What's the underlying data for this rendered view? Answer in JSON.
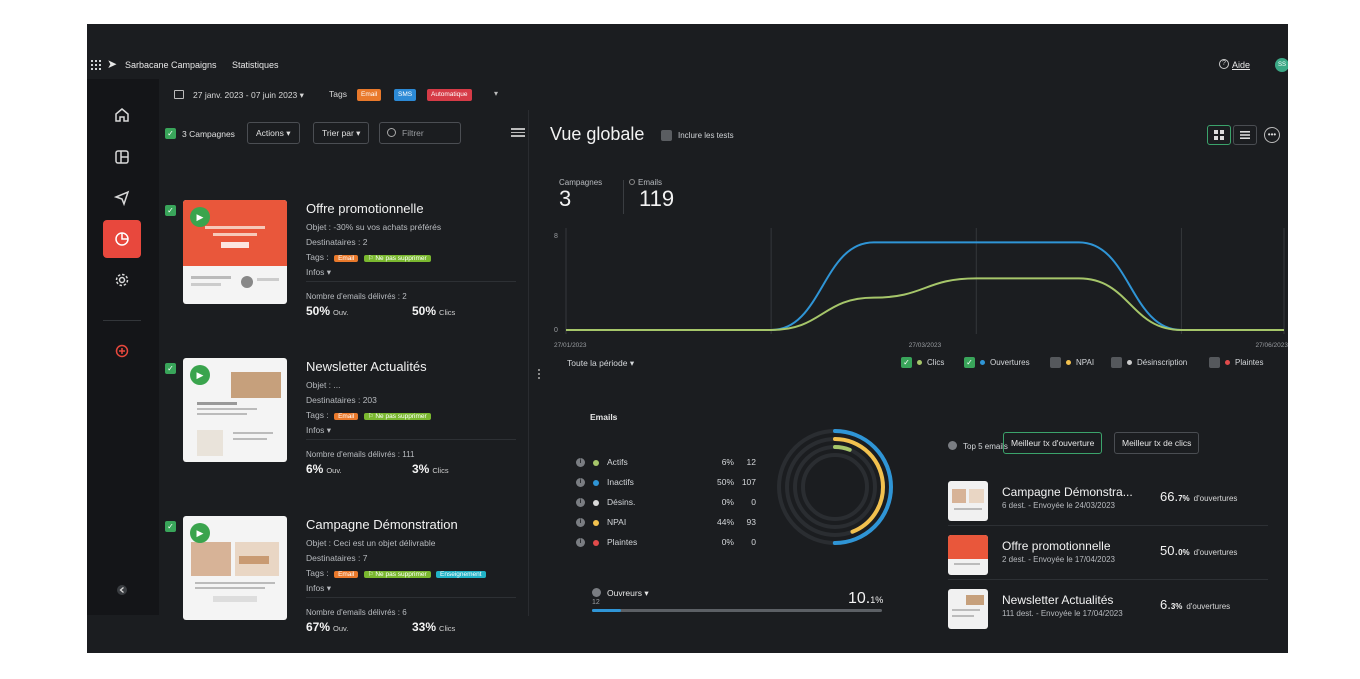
{
  "app": {
    "name": "Sarbacane Campaigns",
    "page": "Statistiques",
    "help": "Aide",
    "avatar": "SS"
  },
  "filters": {
    "date_range": "27 janv. 2023 - 07 juin 2023",
    "tags_label": "Tags",
    "tags": [
      "Email",
      "SMS",
      "Automatique"
    ]
  },
  "list": {
    "count_label": "3 Campagnes",
    "actions": "Actions",
    "sort": "Trier par",
    "filter_placeholder": "Filtrer"
  },
  "campaigns": [
    {
      "title": "Offre promotionnelle",
      "subject": "Objet : -30% su vos achats préférés",
      "recipients": "Destinataires : 2",
      "tags_label": "Tags :",
      "tags": [
        "Email",
        "Ne pas supprimer"
      ],
      "infos": "Infos",
      "delivered": "Nombre d'emails délivrés : 2",
      "open_value": "50%",
      "open_label": "Ouv.",
      "click_value": "50%",
      "click_label": "Clics"
    },
    {
      "title": "Newsletter Actualités",
      "subject": "Objet : ...",
      "recipients": "Destinataires : 203",
      "tags_label": "Tags :",
      "tags": [
        "Email",
        "Ne pas supprimer"
      ],
      "infos": "Infos",
      "delivered": "Nombre d'emails délivrés : 111",
      "open_value": "6%",
      "open_label": "Ouv.",
      "click_value": "3%",
      "click_label": "Clics"
    },
    {
      "title": "Campagne Démonstration",
      "subject": "Objet : Ceci est un objet délivrable",
      "recipients": "Destinataires : 7",
      "tags_label": "Tags :",
      "tags": [
        "Email",
        "Ne pas supprimer",
        "Enseignement"
      ],
      "infos": "Infos",
      "delivered": "Nombre d'emails délivrés : 6",
      "open_value": "67%",
      "open_label": "Ouv.",
      "click_value": "33%",
      "click_label": "Clics"
    }
  ],
  "overview": {
    "title": "Vue globale",
    "include_tests": "Inclure les tests",
    "stats": [
      {
        "label": "Campagnes",
        "value": "3"
      },
      {
        "label": "Emails",
        "value": "119"
      }
    ],
    "period": "Toute la période",
    "legend": [
      {
        "label": "Clics",
        "checked": true,
        "color": "#a6c66a"
      },
      {
        "label": "Ouvertures",
        "checked": true,
        "color": "#2f95d6"
      },
      {
        "label": "NPAI",
        "checked": false,
        "color": "#f2c14e"
      },
      {
        "label": "Désinscription",
        "checked": false,
        "color": "#cccccc"
      },
      {
        "label": "Plaintes",
        "checked": false,
        "color": "#e14b4b"
      }
    ]
  },
  "chart_data": {
    "type": "line",
    "x": [
      "27/01/2023",
      "15/02/2023",
      "06/03/2023",
      "25/03/2023",
      "13/04/2023",
      "02/05/2023",
      "21/05/2023",
      "07/06/2023"
    ],
    "x_tick_labels": [
      "27/01/2023",
      "27/03/2023",
      "27/06/2023"
    ],
    "y_tick_labels": [
      "0",
      "8"
    ],
    "ylim": [
      0,
      8
    ],
    "series": [
      {
        "name": "Ouvertures",
        "color": "#2f95d6",
        "values": [
          0,
          0,
          0,
          7.3,
          7.3,
          7.3,
          0,
          0
        ]
      },
      {
        "name": "Clics",
        "color": "#a6c66a",
        "values": [
          0,
          0,
          0,
          2.7,
          4.3,
          4.3,
          0,
          0
        ]
      }
    ],
    "grid": true
  },
  "emails": {
    "title": "Emails",
    "rows": [
      {
        "label": "Actifs",
        "pct": "6%",
        "count": "12",
        "color": "#a6c66a"
      },
      {
        "label": "Inactifs",
        "pct": "50%",
        "count": "107",
        "color": "#2f95d6"
      },
      {
        "label": "Désins.",
        "pct": "0%",
        "count": "0",
        "color": "#d9d9d9"
      },
      {
        "label": "NPAI",
        "pct": "44%",
        "count": "93",
        "color": "#f2c14e"
      },
      {
        "label": "Plaintes",
        "pct": "0%",
        "count": "0",
        "color": "#e14b4b"
      }
    ],
    "donut": [
      {
        "label": "Inactifs",
        "fraction": 0.5,
        "color": "#2f95d6"
      },
      {
        "label": "NPAI",
        "fraction": 0.44,
        "color": "#f2c14e"
      },
      {
        "label": "Actifs",
        "fraction": 0.06,
        "color": "#a6c66a"
      }
    ],
    "openers_label": "Ouvreurs",
    "openers_count": "12",
    "openers_pct_int": "10.",
    "openers_pct_dec": "1%",
    "openers_fraction": 0.101
  },
  "top5": {
    "label": "Top 5 emails",
    "tab_open": "Meilleur tx d'ouverture",
    "tab_click": "Meilleur tx de clics",
    "items": [
      {
        "title": "Campagne Démonstra...",
        "sub": "6 dest. - Envoyée le 24/03/2023",
        "pct_int": "66.",
        "pct_dec": "7%",
        "unit": "d'ouvertures",
        "kind": "demo"
      },
      {
        "title": "Offre promotionnelle",
        "sub": "2 dest. - Envoyée le 17/04/2023",
        "pct_int": "50.",
        "pct_dec": "0%",
        "unit": "d'ouvertures",
        "kind": "promo"
      },
      {
        "title": "Newsletter Actualités",
        "sub": "111 dest. - Envoyée le 17/04/2023",
        "pct_int": "6.",
        "pct_dec": "3%",
        "unit": "d'ouvertures",
        "kind": "news"
      }
    ]
  }
}
